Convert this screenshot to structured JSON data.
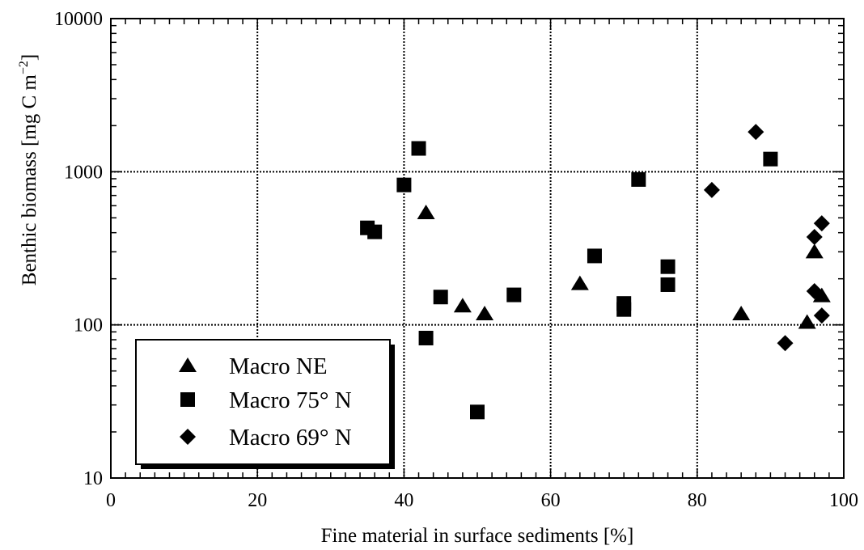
{
  "chart_data": {
    "type": "scatter",
    "xlabel": "Fine material in surface sediments [%]",
    "ylabel": "Benthic biomass [mg C m",
    "ylabel_sup": "−2",
    "ylabel_tail": "]",
    "xlim": [
      0,
      100
    ],
    "ylim": [
      10,
      10000
    ],
    "yscale": "log",
    "xticks": [
      0,
      20,
      40,
      60,
      80,
      100
    ],
    "yticks": [
      10,
      100,
      1000,
      10000
    ],
    "grid": "dotted, major ticks",
    "legend_position": "bottom-left",
    "series": [
      {
        "name": "Macro NE",
        "marker": "triangle",
        "points": [
          {
            "x": 43,
            "y": 540
          },
          {
            "x": 48,
            "y": 133
          },
          {
            "x": 51,
            "y": 118
          },
          {
            "x": 64,
            "y": 186
          },
          {
            "x": 86,
            "y": 118
          },
          {
            "x": 95,
            "y": 104
          },
          {
            "x": 96,
            "y": 300
          },
          {
            "x": 97,
            "y": 155
          }
        ]
      },
      {
        "name": "Macro 75° N",
        "marker": "square",
        "points": [
          {
            "x": 35,
            "y": 430
          },
          {
            "x": 36,
            "y": 405
          },
          {
            "x": 40,
            "y": 820
          },
          {
            "x": 42,
            "y": 1420
          },
          {
            "x": 43,
            "y": 82
          },
          {
            "x": 45,
            "y": 152
          },
          {
            "x": 50,
            "y": 27
          },
          {
            "x": 55,
            "y": 157
          },
          {
            "x": 66,
            "y": 282
          },
          {
            "x": 70,
            "y": 138
          },
          {
            "x": 70,
            "y": 126
          },
          {
            "x": 72,
            "y": 890
          },
          {
            "x": 76,
            "y": 240
          },
          {
            "x": 76,
            "y": 183
          },
          {
            "x": 90,
            "y": 1210
          }
        ]
      },
      {
        "name": "Macro 69° N",
        "marker": "diamond",
        "points": [
          {
            "x": 82,
            "y": 760
          },
          {
            "x": 88,
            "y": 1820
          },
          {
            "x": 92,
            "y": 76
          },
          {
            "x": 96,
            "y": 375
          },
          {
            "x": 96,
            "y": 166
          },
          {
            "x": 97,
            "y": 460
          },
          {
            "x": 97,
            "y": 115
          }
        ]
      }
    ]
  }
}
